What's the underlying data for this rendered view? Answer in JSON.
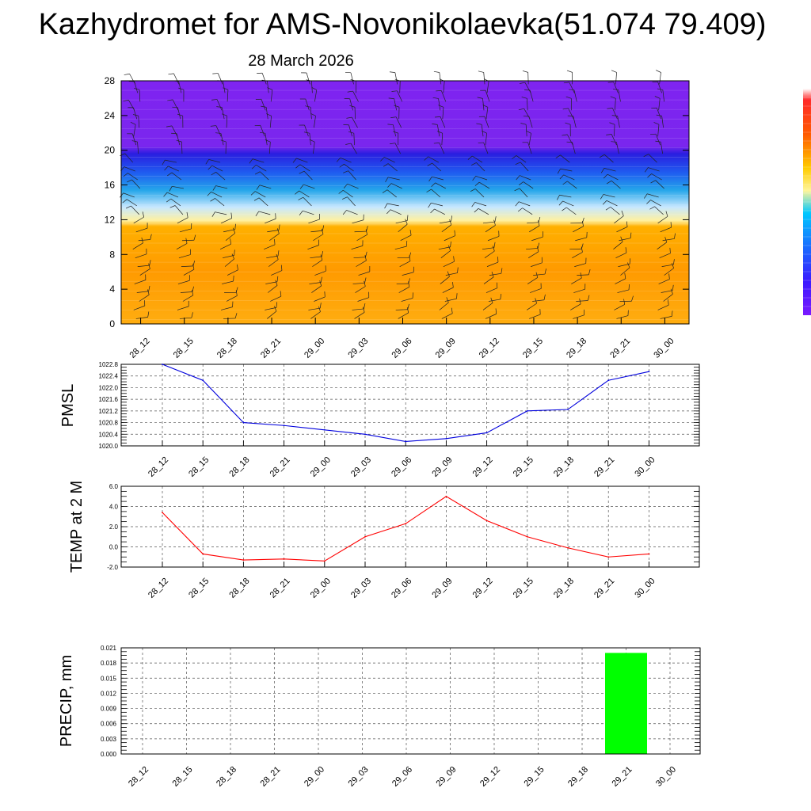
{
  "title": "Kazhydromet for AMS-Novonikolaevka(51.074 79.409)",
  "subtitle": "28 March 2026",
  "time_labels": [
    "28_12",
    "28_15",
    "28_18",
    "28_21",
    "29_00",
    "29_03",
    "29_06",
    "29_09",
    "29_12",
    "29_15",
    "29_18",
    "29_21",
    "30_00"
  ],
  "chart_data": [
    {
      "type": "heatmap",
      "title": "Kazhydromet for AMS-Novonikolaevka(51.074 79.409)",
      "subtitle": "28 March 2026",
      "x": [
        "28_12",
        "28_15",
        "28_18",
        "28_21",
        "29_00",
        "29_03",
        "29_06",
        "29_09",
        "29_12",
        "29_15",
        "29_18",
        "29_21",
        "30_00"
      ],
      "ylim": [
        0,
        28
      ],
      "yticks": [
        "0",
        "4",
        "8",
        "12",
        "16",
        "20",
        "24",
        "28"
      ],
      "color_bands": [
        {
          "from": 0,
          "to": 11.5,
          "color": "#ffa500"
        },
        {
          "from": 11.5,
          "to": 13,
          "color": "#e8f4ff"
        },
        {
          "from": 13,
          "to": 16,
          "color": "#2aaae8"
        },
        {
          "from": 16,
          "to": 19,
          "color": "#2222e0"
        },
        {
          "from": 19,
          "to": 28,
          "color": "#7f24f0"
        }
      ],
      "overlay": "wind barbs",
      "colorbar": [
        "#ff0000",
        "#ff6a00",
        "#ffd000",
        "#fff36a",
        "#00c8ff",
        "#1a6cff",
        "#3a1aff",
        "#7a1aff"
      ]
    },
    {
      "type": "line",
      "ylabel": "PMSL",
      "x": [
        "28_12",
        "28_15",
        "28_18",
        "28_21",
        "29_00",
        "29_03",
        "29_06",
        "29_09",
        "29_12",
        "29_15",
        "29_18",
        "29_21",
        "30_00"
      ],
      "series": [
        {
          "values": [
            1022.8,
            1022.25,
            1020.8,
            1020.7,
            1020.55,
            1020.4,
            1020.15,
            1020.25,
            1020.45,
            1021.2,
            1021.25,
            1022.25,
            1022.55
          ],
          "color": "#0000dd"
        }
      ],
      "ylim": [
        1020.0,
        1022.8
      ],
      "yticks": [
        "1020.0",
        "1020.4",
        "1020.8",
        "1021.2",
        "1021.6",
        "1022.0",
        "1022.4",
        "1022.8"
      ],
      "grid": true
    },
    {
      "type": "line",
      "ylabel": "TEMP at 2 M",
      "x": [
        "28_12",
        "28_15",
        "28_18",
        "28_21",
        "29_00",
        "29_03",
        "29_06",
        "29_09",
        "29_12",
        "29_15",
        "29_18",
        "29_21",
        "30_00"
      ],
      "series": [
        {
          "values": [
            3.4,
            -0.7,
            -1.3,
            -1.2,
            -1.4,
            1.0,
            2.3,
            5.0,
            2.6,
            1.0,
            -0.1,
            -1.0,
            -0.7
          ],
          "color": "#ff0000"
        }
      ],
      "ylim": [
        -2.0,
        6.0
      ],
      "yticks": [
        "-2.0",
        "0.0",
        "2.0",
        "4.0",
        "6.0"
      ],
      "grid": true
    },
    {
      "type": "bar",
      "ylabel": "PRECIP, mm",
      "categories": [
        "28_12",
        "28_15",
        "28_18",
        "28_21",
        "29_00",
        "29_03",
        "29_06",
        "29_09",
        "29_12",
        "29_15",
        "29_18",
        "29_21",
        "30_00"
      ],
      "values": [
        0,
        0,
        0,
        0,
        0,
        0,
        0,
        0,
        0,
        0,
        0,
        0.02,
        0
      ],
      "color": "#00ff00",
      "ylim": [
        0,
        0.021
      ],
      "yticks": [
        "0.000",
        "0.003",
        "0.006",
        "0.009",
        "0.012",
        "0.015",
        "0.018",
        "0.021"
      ],
      "grid": true
    }
  ]
}
